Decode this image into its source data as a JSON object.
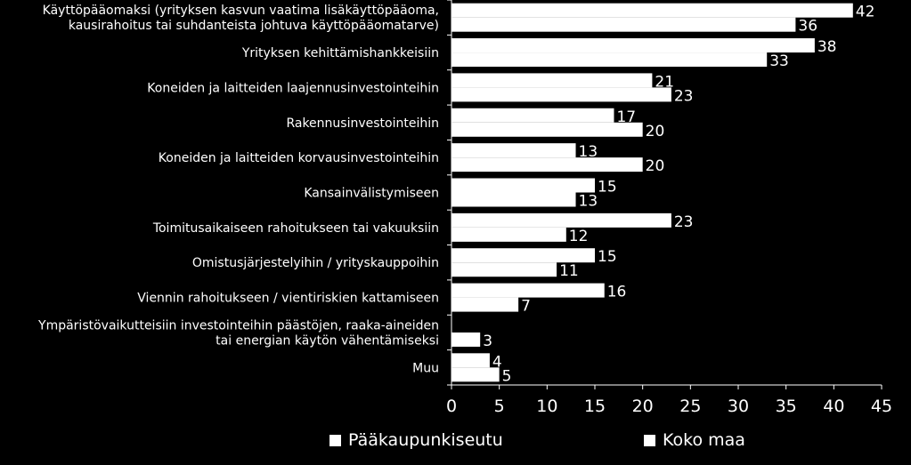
{
  "chart_data": {
    "type": "bar",
    "orientation": "horizontal",
    "categories": [
      [
        "Käyttöpääomaksi (yrityksen kasvun vaatima lisäkäyttöpääoma,",
        "kausirahoitus tai suhdanteista johtuva käyttöpääomatarve)"
      ],
      [
        "Yrityksen kehittämishankkeisiin"
      ],
      [
        "Koneiden ja laitteiden laajennusinvestointeihin"
      ],
      [
        "Rakennusinvestointeihin"
      ],
      [
        "Koneiden ja laitteiden korvausinvestointeihin"
      ],
      [
        "Kansainvälistymiseen"
      ],
      [
        "Toimitusaikaiseen rahoitukseen tai vakuuksiin"
      ],
      [
        "Omistusjärjestelyihin / yrityskauppoihin"
      ],
      [
        "Viennin rahoitukseen / vientiriskien kattamiseen"
      ],
      [
        "Ympäristövaikutteisiin investointeihin päästöjen, raaka-aineiden",
        "tai energian käytön vähentämiseksi"
      ],
      [
        "Muu"
      ]
    ],
    "series": [
      {
        "name": "Pääkaupunkiseutu",
        "values": [
          42,
          38,
          21,
          17,
          13,
          15,
          23,
          15,
          16,
          null,
          4
        ]
      },
      {
        "name": "Koko maa",
        "values": [
          36,
          33,
          23,
          20,
          20,
          13,
          12,
          11,
          7,
          3,
          5
        ]
      }
    ],
    "xlim": [
      0,
      45
    ],
    "xticks": [
      0,
      5,
      10,
      15,
      20,
      25,
      30,
      35,
      40,
      45
    ],
    "colors": {
      "background": "#000000",
      "bars": "#ffffff",
      "text": "#ffffff"
    },
    "legend_position": "bottom",
    "grid": false
  }
}
